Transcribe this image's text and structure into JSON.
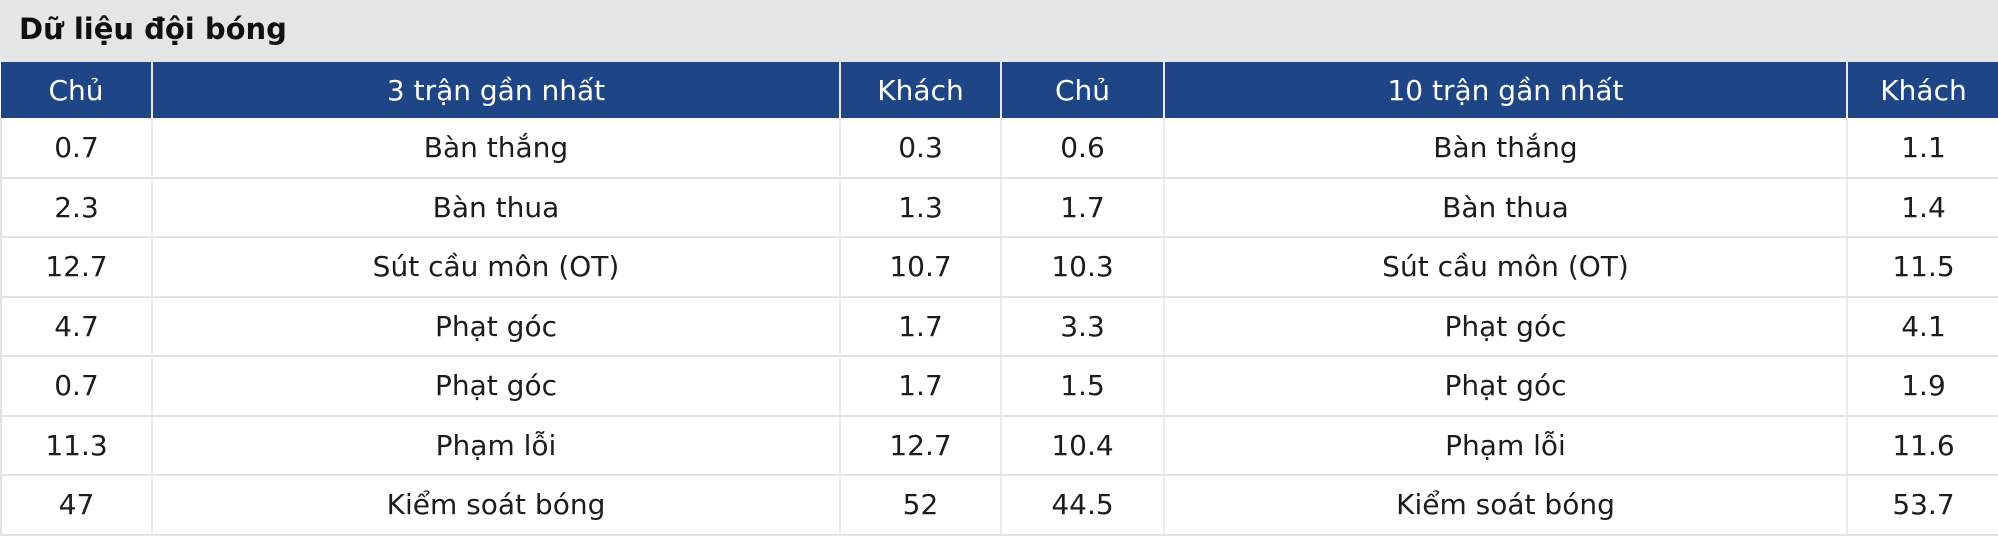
{
  "page": {
    "title": "Dữ liệu đội bóng"
  },
  "table": {
    "headers": [
      "Chủ",
      "3 trận gần nhất",
      "Khách",
      "Chủ",
      "10 trận gần nhất",
      "Khách"
    ],
    "rows": [
      [
        "0.7",
        "Bàn thắng",
        "0.3",
        "0.6",
        "Bàn thắng",
        "1.1"
      ],
      [
        "2.3",
        "Bàn thua",
        "1.3",
        "1.7",
        "Bàn thua",
        "1.4"
      ],
      [
        "12.7",
        "Sút cầu môn (OT)",
        "10.7",
        "10.3",
        "Sút cầu môn (OT)",
        "11.5"
      ],
      [
        "4.7",
        "Phạt góc",
        "1.7",
        "3.3",
        "Phạt góc",
        "4.1"
      ],
      [
        "0.7",
        "Phạt góc",
        "1.7",
        "1.5",
        "Phạt góc",
        "1.9"
      ],
      [
        "11.3",
        "Phạm lỗi",
        "12.7",
        "10.4",
        "Phạm lỗi",
        "11.6"
      ],
      [
        "47",
        "Kiểm soát bóng",
        "52",
        "44.5",
        "Kiểm soát bóng",
        "53.7"
      ]
    ]
  },
  "colors": {
    "header_bg": "#1e4687",
    "header_text": "#ffffff",
    "title_bg": "#e5e5e6",
    "title_text": "#101010",
    "body_text": "#1c1c1c",
    "grid_line": "#e3e3e3"
  }
}
